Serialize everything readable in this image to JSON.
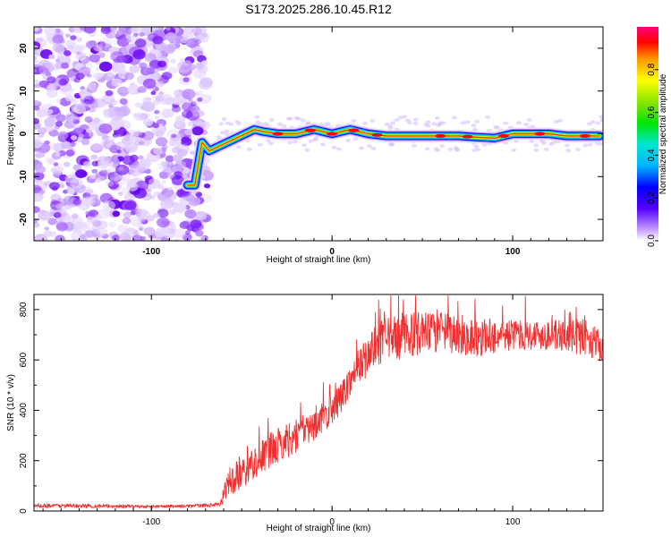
{
  "title": "S173.2025.286.10.45.R12",
  "chart_data": [
    {
      "type": "heatmap",
      "xlabel": "Height of straight line (km)",
      "ylabel": "Frequency (Hz)",
      "xlim": [
        -165,
        150
      ],
      "ylim": [
        -25,
        25
      ],
      "xticks": [
        -100,
        0,
        100
      ],
      "xtick_labels": [
        "-100",
        "0",
        "100"
      ],
      "yticks": [
        -20,
        -10,
        0,
        10,
        20
      ],
      "ytick_labels": [
        "-20",
        "-10",
        "0",
        "10",
        "20"
      ],
      "noise_region_x": [
        -165,
        -72
      ],
      "signal_trace": {
        "x": [
          -80,
          -76,
          -72,
          -68,
          -63,
          -58,
          -53,
          -48,
          -43,
          -38,
          -30,
          -20,
          -10,
          0,
          10,
          20,
          30,
          50,
          70,
          80,
          90,
          100,
          110,
          120,
          130,
          140,
          148
        ],
        "y": [
          -12,
          -12,
          -2,
          -4,
          -3,
          -2,
          -1,
          0,
          1,
          0.5,
          0,
          0,
          1,
          0,
          1,
          0,
          -0.5,
          -0.5,
          -0.5,
          -0.8,
          -1,
          0,
          0,
          0,
          -0.5,
          -0.5,
          -0.5
        ]
      },
      "colorbar": {
        "label": "Normalized spectral amplitude",
        "range": [
          0,
          1
        ],
        "ticks": [
          0.0,
          0.2,
          0.4,
          0.6,
          0.8
        ],
        "tick_labels": [
          "0.0",
          "0.2",
          "0.4",
          "0.6",
          "0.8"
        ]
      }
    },
    {
      "type": "line",
      "xlabel": "Height of straight line (km)",
      "ylabel": "SNR (10 * v/v)",
      "xlim": [
        -165,
        150
      ],
      "ylim": [
        0,
        860
      ],
      "xticks": [
        -100,
        0,
        100
      ],
      "xtick_labels": [
        "-100",
        "0",
        "100"
      ],
      "yticks": [
        0,
        200,
        400,
        600,
        800
      ],
      "ytick_labels": [
        "0",
        "200",
        "400",
        "600",
        "800"
      ],
      "series": [
        {
          "name": "SNR",
          "color": "#f03030",
          "envelope_x": [
            -165,
            -130,
            -100,
            -80,
            -62,
            -58,
            -50,
            -40,
            -30,
            -20,
            -10,
            0,
            5,
            10,
            20,
            25,
            40,
            60,
            80,
            100,
            120,
            140,
            150
          ],
          "envelope_mid": [
            22,
            20,
            18,
            20,
            25,
            110,
            150,
            210,
            260,
            300,
            340,
            400,
            450,
            520,
            620,
            660,
            700,
            710,
            690,
            700,
            700,
            690,
            650
          ],
          "envelope_amp": [
            8,
            8,
            6,
            6,
            8,
            60,
            60,
            70,
            70,
            70,
            60,
            60,
            60,
            60,
            80,
            90,
            90,
            80,
            80,
            60,
            60,
            70,
            60
          ]
        }
      ]
    }
  ],
  "colors": {
    "line": "#f03030",
    "noise": "#9a4dff"
  }
}
